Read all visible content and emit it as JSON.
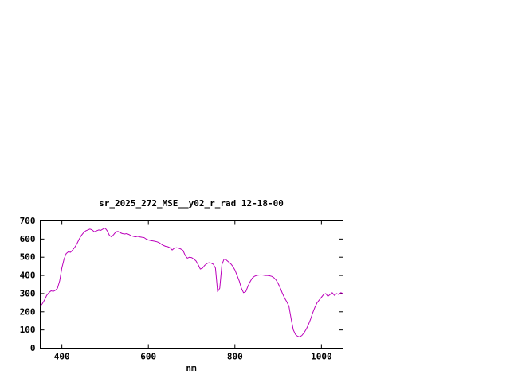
{
  "window": {
    "background_color": "#ffffff",
    "text_color": "#000000"
  },
  "chart_data": {
    "type": "line",
    "title": "sr_2025_272_MSE__y02_r_rad 12-18-00",
    "xlabel": "nm",
    "ylabel": "",
    "xlim": [
      350,
      1050
    ],
    "ylim": [
      0,
      700
    ],
    "xticks": [
      400,
      600,
      800,
      1000
    ],
    "yticks": [
      0,
      100,
      200,
      300,
      400,
      500,
      600,
      700
    ],
    "grid": false,
    "legend": "none",
    "line_color": "#bb00bb",
    "border_color": "#000000",
    "series": [
      {
        "name": "sr_2025_272_MSE__y02_r_rad",
        "x": [
          350,
          355,
          360,
          365,
          370,
          375,
          380,
          385,
          390,
          395,
          400,
          405,
          410,
          415,
          420,
          425,
          430,
          435,
          440,
          445,
          450,
          455,
          460,
          465,
          470,
          475,
          480,
          485,
          490,
          495,
          500,
          505,
          510,
          515,
          520,
          525,
          530,
          535,
          540,
          545,
          550,
          555,
          560,
          565,
          570,
          575,
          580,
          585,
          590,
          595,
          600,
          605,
          610,
          615,
          620,
          625,
          630,
          635,
          640,
          645,
          650,
          655,
          660,
          665,
          670,
          675,
          680,
          685,
          690,
          695,
          700,
          705,
          710,
          715,
          720,
          725,
          730,
          735,
          740,
          745,
          750,
          755,
          760,
          765,
          770,
          775,
          780,
          785,
          790,
          795,
          800,
          805,
          810,
          815,
          820,
          825,
          830,
          835,
          840,
          845,
          850,
          855,
          860,
          865,
          870,
          875,
          880,
          885,
          890,
          895,
          900,
          905,
          910,
          915,
          920,
          925,
          930,
          935,
          940,
          945,
          950,
          955,
          960,
          965,
          970,
          975,
          980,
          985,
          990,
          995,
          1000,
          1005,
          1010,
          1015,
          1020,
          1025,
          1030,
          1035,
          1040,
          1045,
          1050
        ],
        "y": [
          230,
          245,
          265,
          290,
          305,
          315,
          312,
          318,
          330,
          370,
          440,
          490,
          520,
          530,
          527,
          540,
          555,
          575,
          600,
          620,
          635,
          645,
          650,
          655,
          650,
          640,
          645,
          650,
          648,
          655,
          660,
          645,
          620,
          612,
          625,
          640,
          642,
          635,
          630,
          628,
          630,
          625,
          618,
          615,
          612,
          615,
          612,
          610,
          608,
          600,
          595,
          592,
          590,
          588,
          585,
          580,
          572,
          565,
          560,
          558,
          552,
          540,
          550,
          552,
          550,
          545,
          538,
          510,
          495,
          500,
          498,
          490,
          480,
          460,
          435,
          440,
          455,
          465,
          470,
          468,
          462,
          440,
          310,
          330,
          460,
          490,
          485,
          475,
          465,
          450,
          430,
          400,
          370,
          330,
          305,
          310,
          340,
          365,
          385,
          395,
          400,
          402,
          403,
          402,
          400,
          400,
          398,
          395,
          388,
          375,
          355,
          330,
          300,
          275,
          255,
          230,
          160,
          100,
          75,
          65,
          62,
          70,
          85,
          105,
          130,
          160,
          195,
          225,
          250,
          265,
          280,
          295,
          300,
          285,
          295,
          305,
          290,
          300,
          295,
          305,
          300
        ]
      }
    ]
  }
}
